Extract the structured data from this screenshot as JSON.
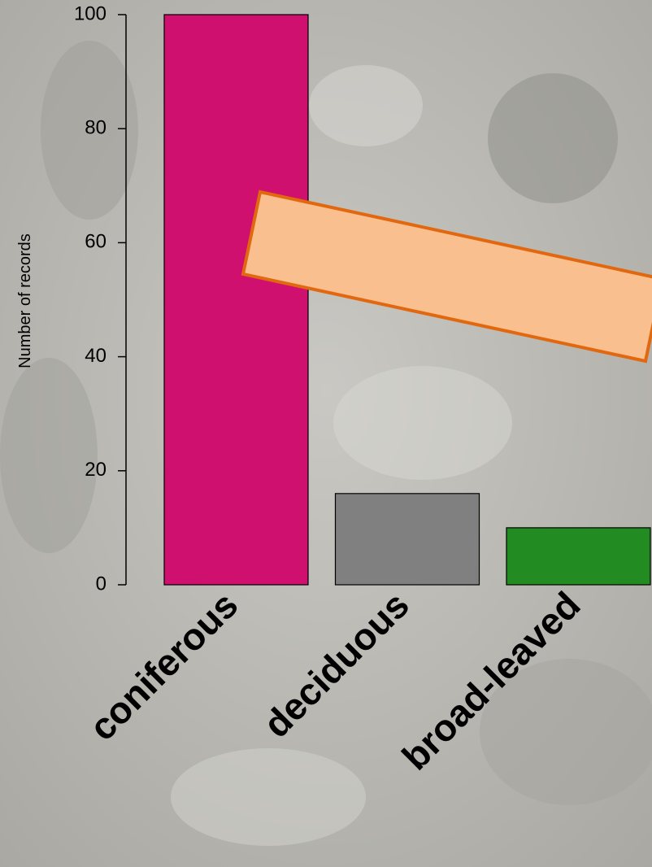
{
  "chart_data": {
    "type": "bar",
    "y_label": "Number of records",
    "categories": [
      "coniferous",
      "deciduous",
      "broad-leaved"
    ],
    "values": [
      100,
      16,
      10
    ],
    "colors": [
      "#d0106f",
      "#808080",
      "#228b22"
    ],
    "ylim": [
      0,
      100
    ],
    "yticks": [
      0,
      20,
      40,
      60,
      80,
      100
    ]
  }
}
